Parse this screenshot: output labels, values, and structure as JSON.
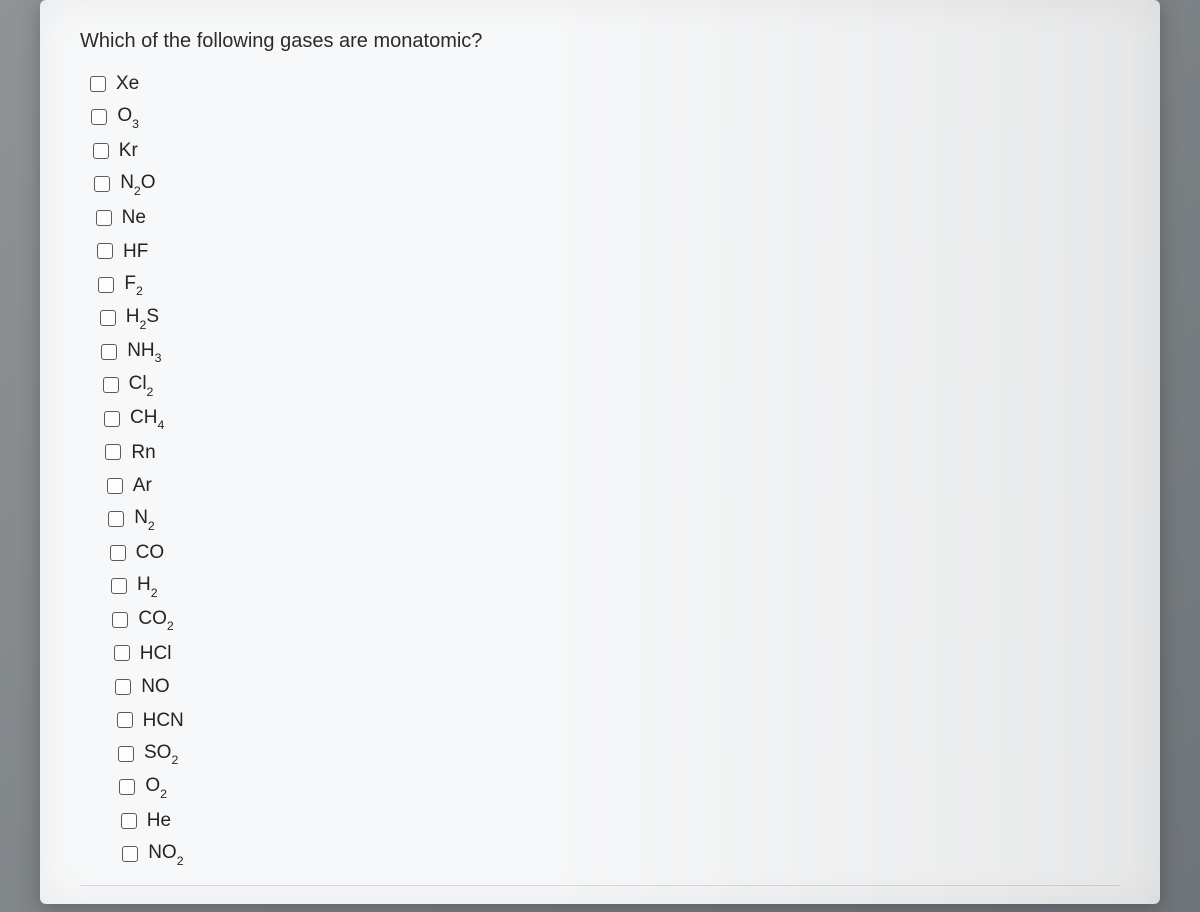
{
  "question": "Which of the following gases are monatomic?",
  "options": [
    {
      "base": "Xe",
      "sub": "",
      "checked": false
    },
    {
      "base": "O",
      "sub": "3",
      "checked": false
    },
    {
      "base": "Kr",
      "sub": "",
      "checked": false
    },
    {
      "base": "N",
      "sub": "2",
      "tail": "O",
      "checked": false
    },
    {
      "base": "Ne",
      "sub": "",
      "checked": false
    },
    {
      "base": "HF",
      "sub": "",
      "checked": false
    },
    {
      "base": "F",
      "sub": "2",
      "checked": false
    },
    {
      "base": "H",
      "sub": "2",
      "tail": "S",
      "checked": false
    },
    {
      "base": "NH",
      "sub": "3",
      "checked": false
    },
    {
      "base": "Cl",
      "sub": "2",
      "checked": false
    },
    {
      "base": "CH",
      "sub": "4",
      "checked": false
    },
    {
      "base": "Rn",
      "sub": "",
      "checked": false
    },
    {
      "base": "Ar",
      "sub": "",
      "checked": false
    },
    {
      "base": "N",
      "sub": "2",
      "checked": false
    },
    {
      "base": "CO",
      "sub": "",
      "checked": false
    },
    {
      "base": "H",
      "sub": "2",
      "checked": false
    },
    {
      "base": "CO",
      "sub": "2",
      "checked": false
    },
    {
      "base": "HCl",
      "sub": "",
      "checked": false
    },
    {
      "base": "NO",
      "sub": "",
      "checked": false
    },
    {
      "base": "HCN",
      "sub": "",
      "checked": false
    },
    {
      "base": "SO",
      "sub": "2",
      "checked": false
    },
    {
      "base": "O",
      "sub": "2",
      "checked": false
    },
    {
      "base": "He",
      "sub": "",
      "checked": false
    },
    {
      "base": "NO",
      "sub": "2",
      "checked": false
    }
  ],
  "colors": {
    "page_bg": "#f7f8f9",
    "text": "#2b2b2b",
    "checkbox_border": "#5a5a5a"
  }
}
